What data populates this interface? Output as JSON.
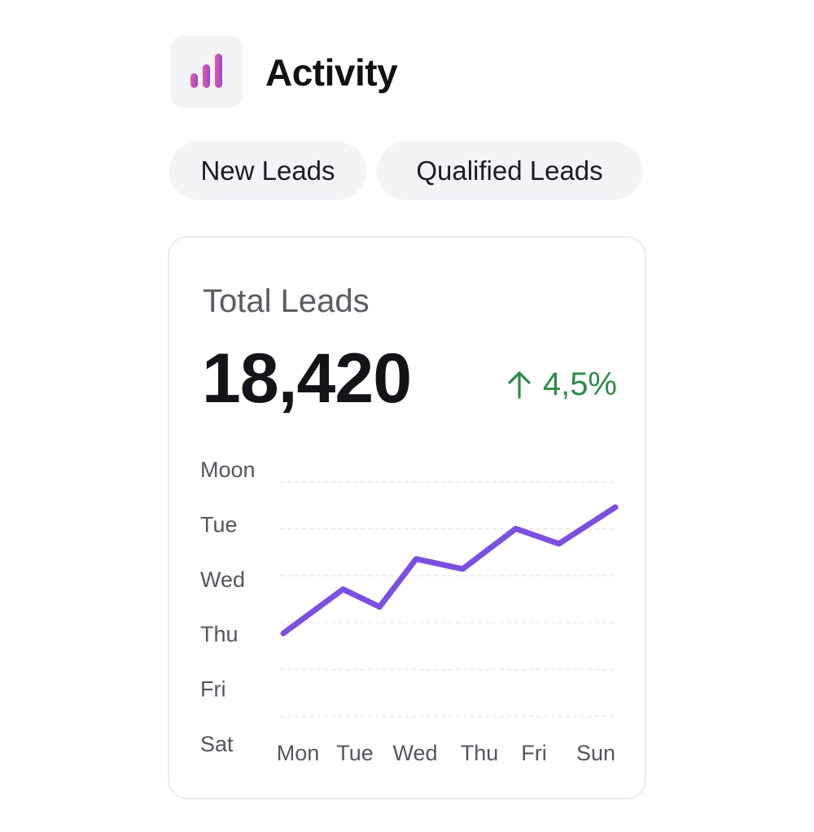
{
  "header": {
    "icon": "bar-chart-icon",
    "title": "Activity"
  },
  "tabs": [
    {
      "label": "New Leads"
    },
    {
      "label": "Qualified Leads"
    }
  ],
  "card": {
    "title": "Total Leads",
    "value": "18,420",
    "change": {
      "icon": "arrow-up-icon",
      "text": "4,5%",
      "color": "#2e8b47"
    }
  },
  "colors": {
    "line": "#7b4fe0",
    "icon_gradient_start": "#f0588f",
    "icon_gradient_end": "#8a4be8"
  },
  "chart_data": {
    "type": "line",
    "categories": [
      "Mon",
      "Tue",
      "Wed",
      "Thu",
      "Fri",
      "Sun"
    ],
    "y_tick_labels": [
      "Moon",
      "Tue",
      "Wed",
      "Thu",
      "Fri",
      "Sat"
    ],
    "grid": true,
    "series": [
      {
        "points": [
          {
            "x": 0,
            "y": 0.0
          },
          {
            "x": 0.18,
            "y": 0.35
          },
          {
            "x": 0.29,
            "y": 0.21
          },
          {
            "x": 0.4,
            "y": 0.59
          },
          {
            "x": 0.54,
            "y": 0.51
          },
          {
            "x": 0.7,
            "y": 0.83
          },
          {
            "x": 0.83,
            "y": 0.71
          },
          {
            "x": 1.0,
            "y": 1.0
          }
        ]
      }
    ]
  }
}
